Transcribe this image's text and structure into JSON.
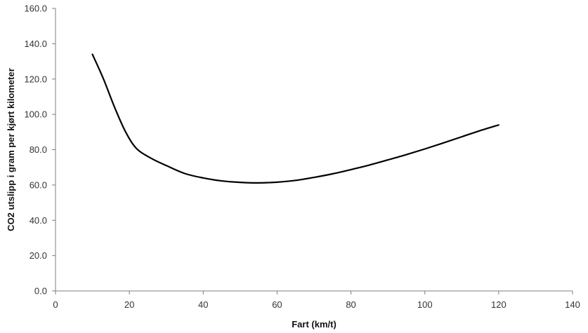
{
  "chart_data": {
    "type": "line",
    "title": "",
    "xlabel": "Fart (km/t)",
    "ylabel": "CO2 utslipp i gram per kjørt kilometer",
    "xlim": [
      0,
      140
    ],
    "ylim": [
      0,
      160
    ],
    "xticks": [
      0,
      20,
      40,
      60,
      80,
      100,
      120,
      140
    ],
    "yticks": [
      0,
      20,
      40,
      60,
      80,
      100,
      120,
      140,
      160
    ],
    "xtick_labels": [
      "0",
      "20",
      "40",
      "60",
      "80",
      "100",
      "120",
      "140"
    ],
    "ytick_labels": [
      "0.0",
      "20.0",
      "40.0",
      "60.0",
      "80.0",
      "100.0",
      "120.0",
      "140.0",
      "160.0"
    ],
    "grid": false,
    "legend": "none",
    "series": [
      {
        "color": "#000000",
        "x": [
          10,
          13,
          16,
          19,
          22,
          26,
          30,
          35,
          40,
          45,
          50,
          55,
          60,
          65,
          70,
          75,
          80,
          85,
          90,
          95,
          100,
          105,
          110,
          115,
          120
        ],
        "y": [
          134,
          120,
          104,
          90,
          80.5,
          75,
          71,
          66.5,
          64,
          62.3,
          61.5,
          61.2,
          61.6,
          62.6,
          64.3,
          66.3,
          68.7,
          71.3,
          74.2,
          77.2,
          80.4,
          83.8,
          87.3,
          90.8,
          94
        ]
      }
    ]
  },
  "colors": {
    "axis": "#7f7f7f",
    "line": "#000000"
  }
}
